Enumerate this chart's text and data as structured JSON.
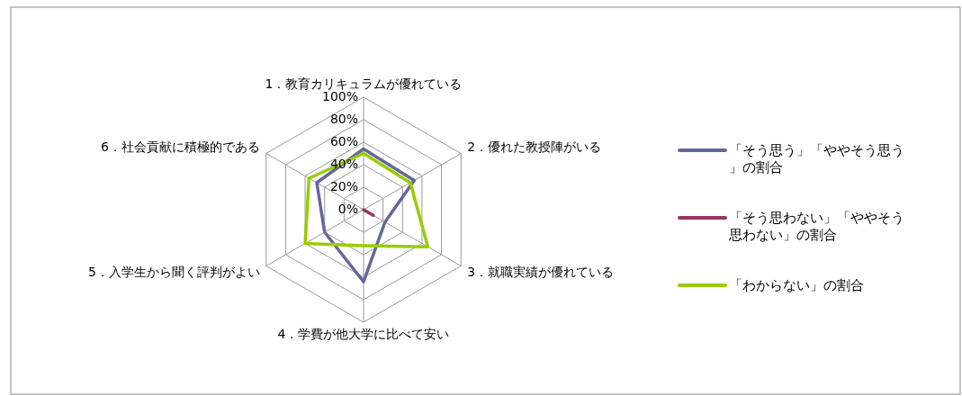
{
  "chart_data": {
    "type": "radar",
    "categories": [
      "1．教育カリキュラムが優れている",
      "2．優れた教授陣がいる",
      "3．就職実績が優れている",
      "4．学費が他大学に比べて安い",
      "5．入学生から聞く評判がよい",
      "6．社会貢献に積極的である"
    ],
    "series": [
      {
        "name": "「そう思う」「ややそう思う」の割合",
        "color": "#666699",
        "values": [
          54,
          52,
          22,
          64,
          40,
          48
        ]
      },
      {
        "name": "「そう思わない」「ややそう思わない」の割合",
        "color": "#993366",
        "values": [
          0,
          0,
          10,
          0,
          0,
          0
        ]
      },
      {
        "name": "「わからない」の割合",
        "color": "#99cc00",
        "values": [
          50,
          48,
          66,
          32,
          60,
          56
        ]
      }
    ],
    "ylim": [
      0,
      100
    ],
    "yticks": [
      {
        "value": 0,
        "label": "0%"
      },
      {
        "value": 20,
        "label": "20%"
      },
      {
        "value": 40,
        "label": "40%"
      },
      {
        "value": 60,
        "label": "60%"
      },
      {
        "value": 80,
        "label": "80%"
      },
      {
        "value": 100,
        "label": "100%"
      }
    ],
    "grid": true,
    "legend": "right",
    "marker": "none"
  }
}
